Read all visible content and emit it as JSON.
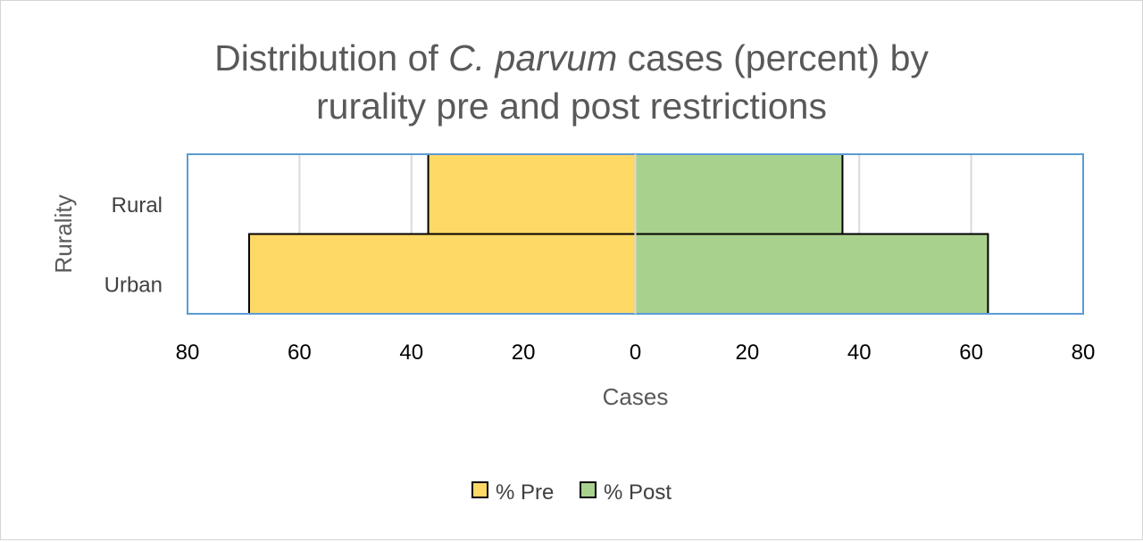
{
  "chart_data": {
    "type": "bar",
    "orientation": "horizontal-butterfly",
    "title_parts": [
      {
        "text": "Distribution of ",
        "italic": false
      },
      {
        "text": "C. parvum",
        "italic": true
      },
      {
        "text": " cases (percent) by",
        "italic": false
      },
      {
        "text": "rurality pre and post restrictions",
        "italic": false,
        "newline": true
      }
    ],
    "xlabel": "Cases",
    "ylabel": "Rurality",
    "categories": [
      "Rural",
      "Urban"
    ],
    "series": [
      {
        "name": "% Pre",
        "values": [
          37,
          69
        ],
        "color": "#FFD966",
        "side": "left"
      },
      {
        "name": "% Post",
        "values": [
          37,
          63
        ],
        "color": "#A9D18E",
        "side": "right"
      }
    ],
    "xlim": [
      -80,
      80
    ],
    "xticks": [
      -80,
      -60,
      -40,
      -20,
      0,
      20,
      40,
      60,
      80
    ],
    "xtick_labels": [
      "80",
      "60",
      "40",
      "20",
      "0",
      "20",
      "40",
      "60",
      "80"
    ],
    "grid": true,
    "legend": "bottom",
    "plot_border_color": "#5B9BD5",
    "gridline_color": "#D9D9D9",
    "bar_edge_color": "#000000"
  }
}
